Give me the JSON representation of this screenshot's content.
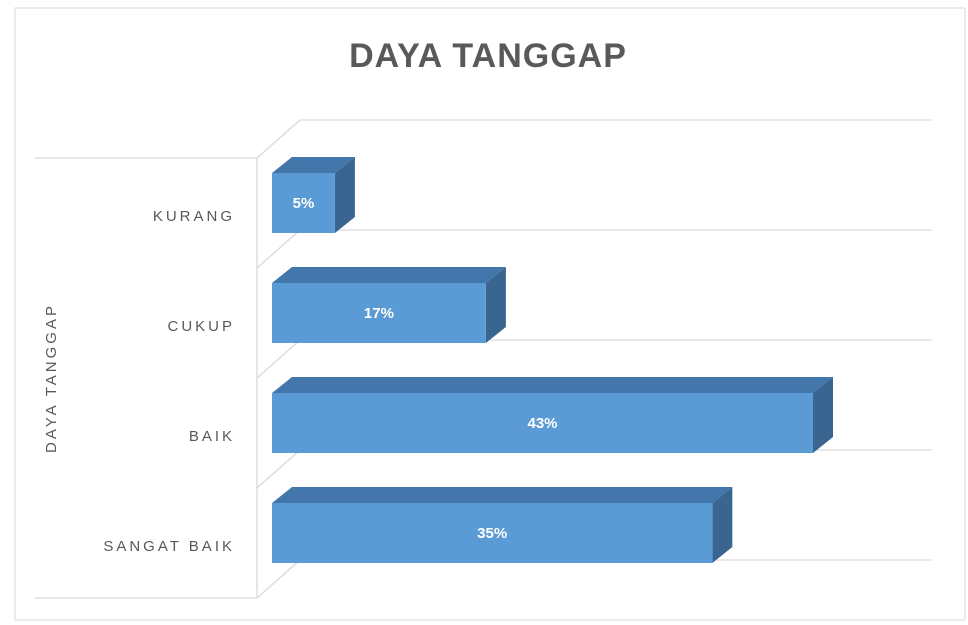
{
  "chart_data": {
    "type": "bar3d",
    "orientation": "horizontal",
    "title": "DAYA TANGGAP",
    "ylabel": "DAYA TANGGAP",
    "categories": [
      "KURANG",
      "CUKUP",
      "BAIK",
      "SANGAT BAIK"
    ],
    "values": [
      5,
      17,
      43,
      35
    ],
    "value_labels": [
      "5%",
      "17%",
      "43%",
      "35%"
    ],
    "color": "#5b9bd5",
    "grid": true
  }
}
